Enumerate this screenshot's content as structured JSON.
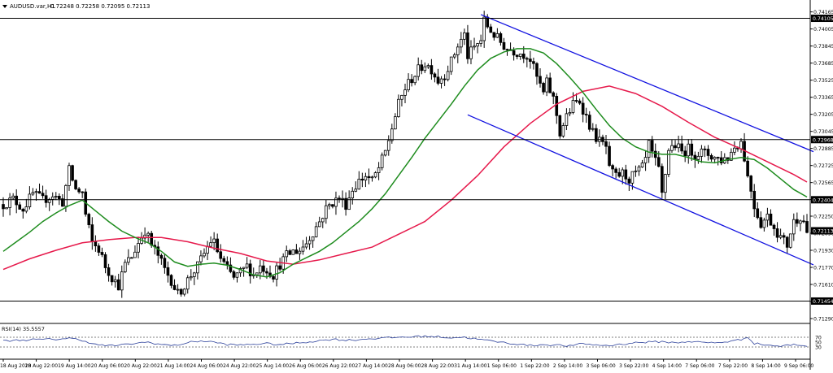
{
  "header": {
    "symbol": "AUDUSD.var,H1",
    "ohlc": "0.72248 0.72258 0.72095 0.72113",
    "menu_icon": "triangle-down-icon"
  },
  "colors": {
    "background": "#ffffff",
    "candles": "#000000",
    "ma_green": "#1e8c1e",
    "ma_red": "#e6194b",
    "channel": "#1010e0",
    "levels": "#000000",
    "rsi_line": "#2a3f9a",
    "price_tag_bg": "#000000",
    "price_tag_fg": "#ffffff"
  },
  "chart_data": [
    {
      "type": "candlestick",
      "title": "",
      "ylim": [
        0.7129,
        0.7417
      ],
      "price_axis_ticks": [
        "0.74165",
        "0.74005",
        "0.73845",
        "0.73685",
        "0.73525",
        "0.73365",
        "0.73205",
        "0.73045",
        "0.72885",
        "0.72725",
        "0.72565",
        "0.72405",
        "0.72250",
        "0.72090",
        "0.71930",
        "0.71770",
        "0.71610",
        "0.71450",
        "0.71290"
      ],
      "time_axis_labels": [
        "18 Aug 2020",
        "18 Aug 22:00",
        "19 Aug 14:00",
        "20 Aug 06:00",
        "20 Aug 22:00",
        "21 Aug 14:00",
        "24 Aug 06:00",
        "24 Aug 22:00",
        "25 Aug 14:00",
        "26 Aug 06:00",
        "26 Aug 22:00",
        "27 Aug 14:00",
        "28 Aug 06:00",
        "28 Aug 22:00",
        "31 Aug 14:00",
        "1 Sep 06:00",
        "1 Sep 22:00",
        "2 Sep 14:00",
        "3 Sep 06:00",
        "3 Sep 22:00",
        "4 Sep 14:00",
        "7 Sep 06:00",
        "7 Sep 22:00",
        "8 Sep 14:00",
        "9 Sep 06:00"
      ],
      "horizontal_levels": [
        {
          "price": 0.74105,
          "label": "0.74105"
        },
        {
          "price": 0.72968,
          "label": "0.72968"
        },
        {
          "price": 0.72404,
          "label": "0.72404"
        },
        {
          "price": 0.71454,
          "label": "0.71454"
        }
      ],
      "current_price_tag": "0.72113",
      "close_path": [
        [
          0,
          0.7236
        ],
        [
          3,
          0.7241
        ],
        [
          6,
          0.7232
        ],
        [
          9,
          0.7246
        ],
        [
          12,
          0.724
        ],
        [
          15,
          0.7245
        ],
        [
          18,
          0.7238
        ],
        [
          20,
          0.7268
        ],
        [
          22,
          0.725
        ],
        [
          24,
          0.7247
        ],
        [
          25,
          0.7226
        ],
        [
          27,
          0.72
        ],
        [
          29,
          0.7194
        ],
        [
          31,
          0.7178
        ],
        [
          33,
          0.7168
        ],
        [
          35,
          0.716
        ],
        [
          37,
          0.718
        ],
        [
          39,
          0.7187
        ],
        [
          41,
          0.72
        ],
        [
          43,
          0.7212
        ],
        [
          45,
          0.7198
        ],
        [
          47,
          0.7188
        ],
        [
          49,
          0.7175
        ],
        [
          51,
          0.7165
        ],
        [
          53,
          0.7152
        ],
        [
          55,
          0.716
        ],
        [
          57,
          0.717
        ],
        [
          59,
          0.7178
        ],
        [
          61,
          0.719
        ],
        [
          63,
          0.7202
        ],
        [
          64,
          0.72
        ],
        [
          66,
          0.7185
        ],
        [
          68,
          0.7175
        ],
        [
          70,
          0.7167
        ],
        [
          72,
          0.7172
        ],
        [
          74,
          0.7178
        ],
        [
          76,
          0.717
        ],
        [
          78,
          0.7178
        ],
        [
          80,
          0.7175
        ],
        [
          82,
          0.717
        ],
        [
          84,
          0.718
        ],
        [
          86,
          0.7188
        ],
        [
          88,
          0.7192
        ],
        [
          90,
          0.7193
        ],
        [
          92,
          0.72
        ],
        [
          94,
          0.721
        ],
        [
          96,
          0.722
        ],
        [
          98,
          0.7232
        ],
        [
          100,
          0.7238
        ],
        [
          102,
          0.7242
        ],
        [
          104,
          0.7236
        ],
        [
          106,
          0.725
        ],
        [
          108,
          0.7258
        ],
        [
          110,
          0.7263
        ],
        [
          112,
          0.7258
        ],
        [
          114,
          0.727
        ],
        [
          116,
          0.7285
        ],
        [
          118,
          0.7308
        ],
        [
          120,
          0.733
        ],
        [
          122,
          0.7345
        ],
        [
          124,
          0.7354
        ],
        [
          126,
          0.7362
        ],
        [
          128,
          0.7368
        ],
        [
          130,
          0.7363
        ],
        [
          132,
          0.7352
        ],
        [
          134,
          0.7358
        ],
        [
          136,
          0.737
        ],
        [
          138,
          0.7385
        ],
        [
          140,
          0.7395
        ],
        [
          141,
          0.7375
        ],
        [
          143,
          0.7383
        ],
        [
          145,
          0.739
        ],
        [
          146,
          0.7408
        ],
        [
          147,
          0.7403
        ],
        [
          149,
          0.7395
        ],
        [
          151,
          0.7388
        ],
        [
          153,
          0.7382
        ],
        [
          155,
          0.738
        ],
        [
          157,
          0.7378
        ],
        [
          159,
          0.7376
        ],
        [
          160,
          0.7372
        ],
        [
          162,
          0.7355
        ],
        [
          164,
          0.734
        ],
        [
          165,
          0.735
        ],
        [
          167,
          0.7335
        ],
        [
          168,
          0.732
        ],
        [
          169,
          0.7303
        ],
        [
          171,
          0.7318
        ],
        [
          173,
          0.733
        ],
        [
          175,
          0.7333
        ],
        [
          177,
          0.7318
        ],
        [
          179,
          0.7303
        ],
        [
          181,
          0.7295
        ],
        [
          183,
          0.729
        ],
        [
          184,
          0.7268
        ],
        [
          186,
          0.7262
        ],
        [
          188,
          0.7265
        ],
        [
          190,
          0.726
        ],
        [
          192,
          0.7265
        ],
        [
          194,
          0.727
        ],
        [
          195,
          0.7278
        ],
        [
          196,
          0.7292
        ],
        [
          197,
          0.7283
        ],
        [
          199,
          0.7268
        ],
        [
          200,
          0.7245
        ],
        [
          201,
          0.7265
        ],
        [
          202,
          0.7288
        ],
        [
          204,
          0.7292
        ],
        [
          206,
          0.7285
        ],
        [
          208,
          0.7288
        ],
        [
          210,
          0.7283
        ],
        [
          212,
          0.7285
        ],
        [
          214,
          0.7283
        ],
        [
          216,
          0.728
        ],
        [
          218,
          0.7278
        ],
        [
          220,
          0.728
        ],
        [
          222,
          0.729
        ],
        [
          224,
          0.7295
        ],
        [
          225,
          0.728
        ],
        [
          226,
          0.7262
        ],
        [
          227,
          0.725
        ],
        [
          228,
          0.7235
        ],
        [
          230,
          0.7218
        ],
        [
          232,
          0.7225
        ],
        [
          234,
          0.7215
        ],
        [
          236,
          0.7205
        ],
        [
          238,
          0.7198
        ],
        [
          239,
          0.721
        ],
        [
          240,
          0.722
        ],
        [
          242,
          0.7225
        ],
        [
          243,
          0.722
        ],
        [
          244,
          0.7211
        ]
      ],
      "ma_green_path": [
        [
          0,
          0.7192
        ],
        [
          4,
          0.7201
        ],
        [
          8,
          0.721
        ],
        [
          12,
          0.722
        ],
        [
          16,
          0.7228
        ],
        [
          20,
          0.7235
        ],
        [
          24,
          0.724
        ],
        [
          28,
          0.723
        ],
        [
          32,
          0.722
        ],
        [
          36,
          0.7211
        ],
        [
          40,
          0.7205
        ],
        [
          44,
          0.72
        ],
        [
          48,
          0.7192
        ],
        [
          52,
          0.7182
        ],
        [
          56,
          0.7178
        ],
        [
          60,
          0.718
        ],
        [
          64,
          0.7181
        ],
        [
          68,
          0.7179
        ],
        [
          72,
          0.7175
        ],
        [
          76,
          0.717
        ],
        [
          80,
          0.7168
        ],
        [
          84,
          0.7172
        ],
        [
          88,
          0.718
        ],
        [
          92,
          0.7186
        ],
        [
          96,
          0.7192
        ],
        [
          100,
          0.72
        ],
        [
          104,
          0.721
        ],
        [
          108,
          0.722
        ],
        [
          112,
          0.7232
        ],
        [
          116,
          0.7246
        ],
        [
          120,
          0.7263
        ],
        [
          124,
          0.728
        ],
        [
          128,
          0.7298
        ],
        [
          132,
          0.7314
        ],
        [
          136,
          0.733
        ],
        [
          140,
          0.7347
        ],
        [
          144,
          0.7362
        ],
        [
          148,
          0.7373
        ],
        [
          152,
          0.7379
        ],
        [
          156,
          0.7382
        ],
        [
          160,
          0.7382
        ],
        [
          164,
          0.7378
        ],
        [
          168,
          0.7368
        ],
        [
          172,
          0.7355
        ],
        [
          176,
          0.7341
        ],
        [
          180,
          0.7325
        ],
        [
          184,
          0.731
        ],
        [
          188,
          0.7298
        ],
        [
          192,
          0.729
        ],
        [
          196,
          0.7285
        ],
        [
          200,
          0.7283
        ],
        [
          204,
          0.7283
        ],
        [
          208,
          0.728
        ],
        [
          212,
          0.7276
        ],
        [
          216,
          0.7275
        ],
        [
          220,
          0.7278
        ],
        [
          224,
          0.728
        ],
        [
          228,
          0.7278
        ],
        [
          232,
          0.727
        ],
        [
          236,
          0.726
        ],
        [
          240,
          0.725
        ],
        [
          244,
          0.7243
        ]
      ],
      "ma_red_path": [
        [
          0,
          0.7175
        ],
        [
          8,
          0.7185
        ],
        [
          16,
          0.7193
        ],
        [
          24,
          0.72
        ],
        [
          32,
          0.7203
        ],
        [
          40,
          0.7205
        ],
        [
          48,
          0.7205
        ],
        [
          56,
          0.7201
        ],
        [
          64,
          0.7195
        ],
        [
          72,
          0.719
        ],
        [
          80,
          0.7183
        ],
        [
          88,
          0.718
        ],
        [
          96,
          0.7184
        ],
        [
          104,
          0.719
        ],
        [
          112,
          0.7196
        ],
        [
          120,
          0.7208
        ],
        [
          128,
          0.722
        ],
        [
          136,
          0.724
        ],
        [
          144,
          0.7263
        ],
        [
          152,
          0.729
        ],
        [
          160,
          0.7312
        ],
        [
          168,
          0.733
        ],
        [
          176,
          0.7342
        ],
        [
          184,
          0.7347
        ],
        [
          192,
          0.734
        ],
        [
          200,
          0.7328
        ],
        [
          208,
          0.7313
        ],
        [
          216,
          0.7299
        ],
        [
          224,
          0.7288
        ],
        [
          232,
          0.7276
        ],
        [
          240,
          0.7264
        ],
        [
          244,
          0.7257
        ]
      ],
      "channel_lines": [
        [
          [
            145,
            0.7414
          ],
          [
            244,
            0.7288
          ]
        ],
        [
          [
            141,
            0.732
          ],
          [
            244,
            0.7182
          ]
        ]
      ]
    },
    {
      "type": "line",
      "title": "RSI(14) 35.5557",
      "ylim": [
        0,
        100
      ],
      "y_ticks": [
        "70",
        "50",
        "30"
      ],
      "levels": [
        70,
        30
      ],
      "x": [
        0,
        8,
        16,
        20,
        24,
        28,
        32,
        36,
        40,
        44,
        48,
        52,
        56,
        60,
        64,
        68,
        72,
        76,
        80,
        84,
        88,
        92,
        96,
        100,
        104,
        108,
        112,
        116,
        120,
        124,
        128,
        132,
        136,
        140,
        144,
        148,
        152,
        156,
        160,
        164,
        168,
        172,
        176,
        180,
        184,
        188,
        192,
        196,
        200,
        204,
        208,
        212,
        216,
        220,
        224,
        226,
        228,
        232,
        236,
        240,
        244
      ],
      "values": [
        55,
        60,
        62,
        66,
        58,
        40,
        35,
        38,
        45,
        50,
        40,
        36,
        48,
        55,
        50,
        40,
        38,
        42,
        44,
        40,
        45,
        50,
        56,
        62,
        58,
        60,
        65,
        67,
        70,
        72,
        74,
        72,
        68,
        70,
        62,
        55,
        48,
        42,
        36,
        40,
        38,
        34,
        44,
        38,
        36,
        42,
        48,
        50,
        52,
        47,
        53,
        49,
        47,
        52,
        60,
        72,
        45,
        38,
        33,
        40,
        35
      ]
    }
  ]
}
